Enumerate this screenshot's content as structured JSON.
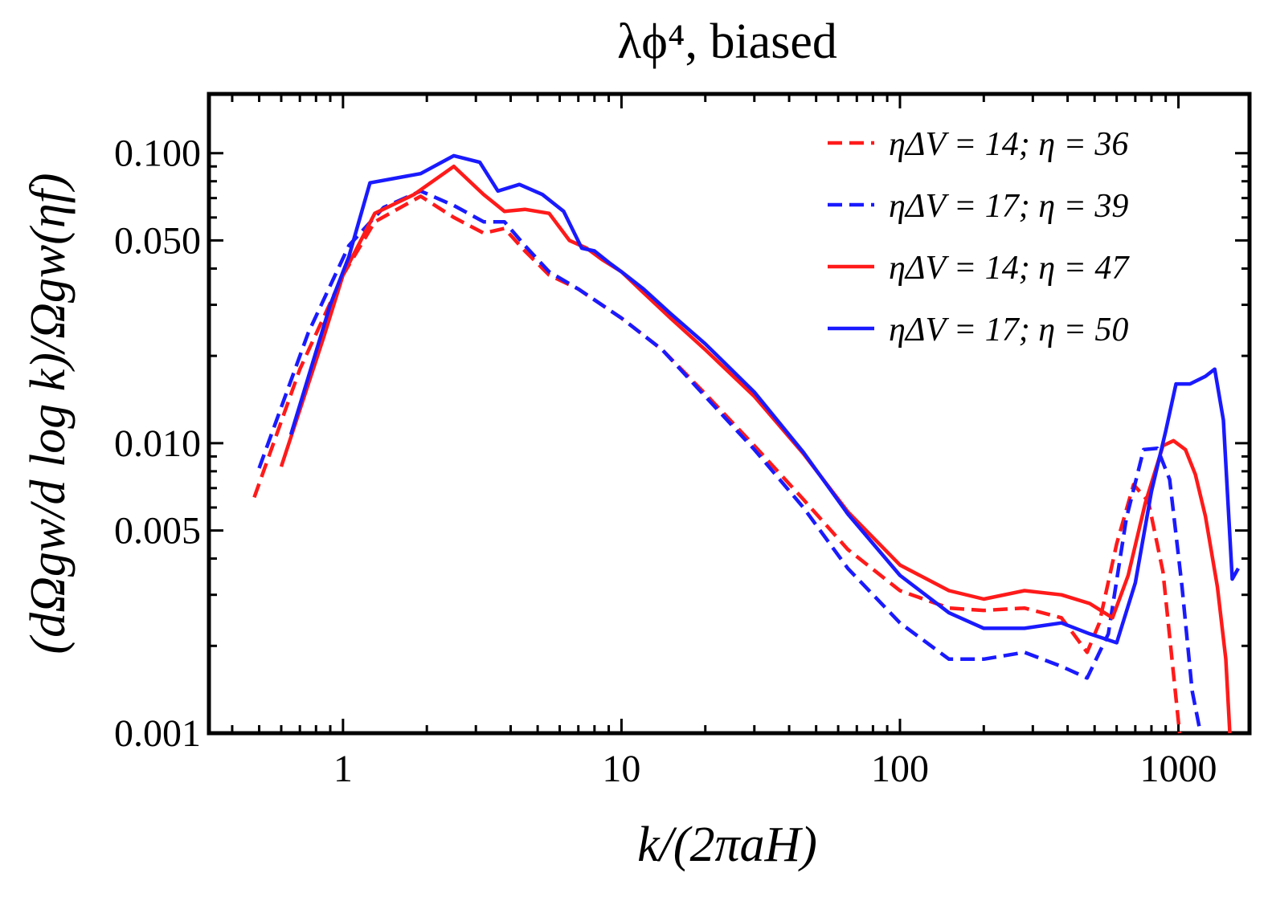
{
  "chart_data": {
    "type": "line",
    "title": "λϕ⁴, biased",
    "xlabel": "k/(2πaH)",
    "ylabel": "(dΩgw/d log k)/Ωgw(ηf)",
    "xscale": "log",
    "yscale": "log",
    "xlim": [
      0.33,
      1800
    ],
    "ylim": [
      0.001,
      0.16
    ],
    "x_ticks": [
      1,
      10,
      100,
      1000
    ],
    "x_tick_labels": [
      "1",
      "10",
      "100",
      "1000"
    ],
    "y_ticks": [
      0.001,
      0.005,
      0.01,
      0.05,
      0.1
    ],
    "y_tick_labels": [
      "0.001",
      "0.005",
      "0.010",
      "0.050",
      "0.100"
    ],
    "legend_position": "top-right",
    "grid": false,
    "series": [
      {
        "name": "ηΔV = 14;  η = 36",
        "color": "#ff1a1a",
        "dash": "dashed",
        "points": [
          [
            0.48,
            0.0065
          ],
          [
            0.7,
            0.018
          ],
          [
            1.0,
            0.038
          ],
          [
            1.3,
            0.058
          ],
          [
            1.9,
            0.071
          ],
          [
            2.5,
            0.06
          ],
          [
            3.2,
            0.053
          ],
          [
            3.8,
            0.055
          ],
          [
            4.5,
            0.046
          ],
          [
            5.5,
            0.038
          ],
          [
            7,
            0.034
          ],
          [
            10,
            0.027
          ],
          [
            14,
            0.021
          ],
          [
            20,
            0.0148
          ],
          [
            30,
            0.0098
          ],
          [
            45,
            0.0064
          ],
          [
            65,
            0.0043
          ],
          [
            100,
            0.0031
          ],
          [
            150,
            0.0027
          ],
          [
            200,
            0.00265
          ],
          [
            280,
            0.0027
          ],
          [
            380,
            0.0025
          ],
          [
            470,
            0.0019
          ],
          [
            520,
            0.0024
          ],
          [
            600,
            0.0045
          ],
          [
            690,
            0.0072
          ],
          [
            780,
            0.0063
          ],
          [
            880,
            0.0036
          ],
          [
            960,
            0.0016
          ],
          [
            1010,
            0.0009
          ]
        ]
      },
      {
        "name": "ηΔV = 17;  η = 39",
        "color": "#1a1aff",
        "dash": "dashed",
        "points": [
          [
            0.5,
            0.0082
          ],
          [
            0.75,
            0.024
          ],
          [
            1.05,
            0.048
          ],
          [
            1.4,
            0.065
          ],
          [
            1.9,
            0.074
          ],
          [
            2.5,
            0.066
          ],
          [
            3.2,
            0.058
          ],
          [
            3.8,
            0.058
          ],
          [
            4.5,
            0.048
          ],
          [
            5.5,
            0.039
          ],
          [
            7,
            0.034
          ],
          [
            10,
            0.027
          ],
          [
            14,
            0.021
          ],
          [
            20,
            0.0145
          ],
          [
            30,
            0.0095
          ],
          [
            45,
            0.006
          ],
          [
            65,
            0.0037
          ],
          [
            100,
            0.0024
          ],
          [
            150,
            0.0018
          ],
          [
            200,
            0.0018
          ],
          [
            280,
            0.0019
          ],
          [
            380,
            0.0017
          ],
          [
            470,
            0.00155
          ],
          [
            560,
            0.0022
          ],
          [
            650,
            0.0055
          ],
          [
            750,
            0.0095
          ],
          [
            840,
            0.0096
          ],
          [
            930,
            0.0075
          ],
          [
            1030,
            0.0032
          ],
          [
            1120,
            0.0014
          ],
          [
            1200,
            0.0009
          ]
        ]
      },
      {
        "name": "ηΔV = 14;  η = 47",
        "color": "#ff1a1a",
        "dash": "solid",
        "points": [
          [
            0.6,
            0.0083
          ],
          [
            0.85,
            0.023
          ],
          [
            1.0,
            0.038
          ],
          [
            1.3,
            0.062
          ],
          [
            1.8,
            0.072
          ],
          [
            2.5,
            0.09
          ],
          [
            3.2,
            0.072
          ],
          [
            3.8,
            0.063
          ],
          [
            4.5,
            0.064
          ],
          [
            5.5,
            0.062
          ],
          [
            6.5,
            0.05
          ],
          [
            7.5,
            0.047
          ],
          [
            8.5,
            0.043
          ],
          [
            10,
            0.039
          ],
          [
            12,
            0.033
          ],
          [
            15,
            0.027
          ],
          [
            20,
            0.021
          ],
          [
            30,
            0.0145
          ],
          [
            45,
            0.0092
          ],
          [
            65,
            0.0058
          ],
          [
            100,
            0.0038
          ],
          [
            150,
            0.0031
          ],
          [
            200,
            0.0029
          ],
          [
            280,
            0.0031
          ],
          [
            380,
            0.003
          ],
          [
            480,
            0.0028
          ],
          [
            580,
            0.0025
          ],
          [
            660,
            0.0035
          ],
          [
            760,
            0.0062
          ],
          [
            880,
            0.0098
          ],
          [
            960,
            0.0102
          ],
          [
            1060,
            0.0095
          ],
          [
            1150,
            0.0078
          ],
          [
            1250,
            0.0056
          ],
          [
            1380,
            0.0032
          ],
          [
            1480,
            0.0018
          ],
          [
            1530,
            0.0009
          ]
        ]
      },
      {
        "name": "ηΔV = 17;  η = 50",
        "color": "#1a1aff",
        "dash": "solid",
        "points": [
          [
            0.65,
            0.0107
          ],
          [
            0.9,
            0.03
          ],
          [
            1.05,
            0.044
          ],
          [
            1.25,
            0.079
          ],
          [
            1.9,
            0.085
          ],
          [
            2.5,
            0.098
          ],
          [
            3.1,
            0.093
          ],
          [
            3.6,
            0.074
          ],
          [
            4.3,
            0.078
          ],
          [
            5.2,
            0.072
          ],
          [
            6.2,
            0.063
          ],
          [
            7.2,
            0.047
          ],
          [
            8,
            0.046
          ],
          [
            9,
            0.042
          ],
          [
            10,
            0.039
          ],
          [
            12,
            0.034
          ],
          [
            15,
            0.028
          ],
          [
            20,
            0.022
          ],
          [
            30,
            0.015
          ],
          [
            45,
            0.0093
          ],
          [
            65,
            0.0057
          ],
          [
            100,
            0.0035
          ],
          [
            150,
            0.0026
          ],
          [
            200,
            0.0023
          ],
          [
            280,
            0.0023
          ],
          [
            380,
            0.0024
          ],
          [
            480,
            0.0022
          ],
          [
            600,
            0.00205
          ],
          [
            700,
            0.0033
          ],
          [
            800,
            0.0068
          ],
          [
            900,
            0.011
          ],
          [
            980,
            0.016
          ],
          [
            1100,
            0.016
          ],
          [
            1250,
            0.017
          ],
          [
            1350,
            0.018
          ],
          [
            1450,
            0.012
          ],
          [
            1560,
            0.0034
          ],
          [
            1640,
            0.0037
          ]
        ]
      }
    ]
  }
}
